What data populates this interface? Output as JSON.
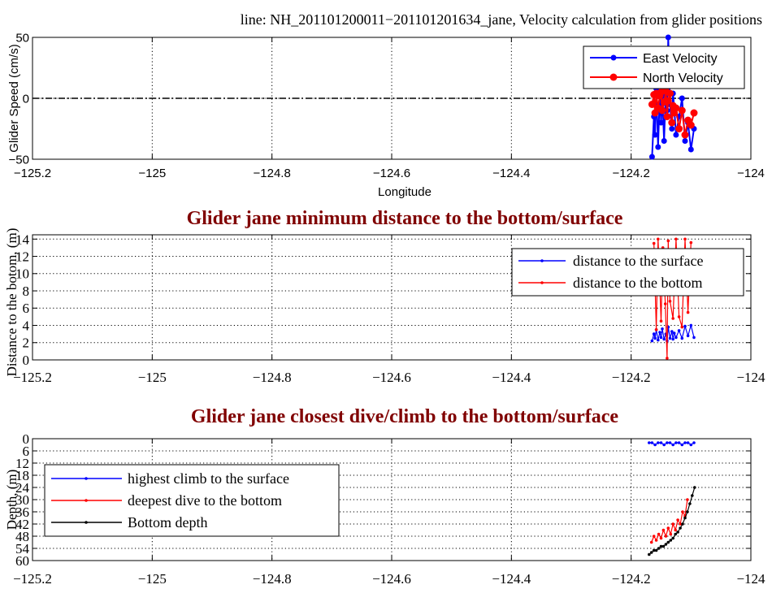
{
  "figure": {
    "top_title": "line: NH_201101200011−201101201634_jane, Velocity calculation from glider positions"
  },
  "chart_data": [
    {
      "type": "line",
      "title": "",
      "xlabel": "Longitude",
      "ylabel": "Glider Speed (cm/s)",
      "xlim": [
        -125.2,
        -124.0
      ],
      "ylim": [
        -50,
        50
      ],
      "xticks": [
        -125.2,
        -125.0,
        -124.8,
        -124.6,
        -124.4,
        -124.2,
        -124.0
      ],
      "xtick_labels": [
        "−125.2",
        "−125",
        "−124.8",
        "−124.6",
        "−124.4",
        "−124.2",
        "−124"
      ],
      "yticks": [
        -50,
        0,
        50
      ],
      "ytick_labels": [
        "−50",
        "0",
        "50"
      ],
      "grid": true,
      "legend_position": "top-right",
      "reference_line": {
        "y": 0,
        "style": "dash-dot"
      },
      "series": [
        {
          "name": "East Velocity",
          "color": "#0000ff",
          "x": [
            -124.165,
            -124.162,
            -124.16,
            -124.158,
            -124.155,
            -124.152,
            -124.15,
            -124.148,
            -124.145,
            -124.142,
            -124.14,
            -124.138,
            -124.135,
            -124.132,
            -124.13,
            -124.128,
            -124.125,
            -124.12,
            -124.115,
            -124.11,
            -124.105,
            -124.1,
            -124.095
          ],
          "values": [
            -48,
            -15,
            -30,
            8,
            -40,
            5,
            -20,
            2,
            -35,
            10,
            -10,
            50,
            -5,
            -25,
            4,
            -8,
            -30,
            -15,
            0,
            -35,
            -20,
            -42,
            -25
          ]
        },
        {
          "name": "North Velocity",
          "color": "#ff0000",
          "x": [
            -124.165,
            -124.162,
            -124.16,
            -124.158,
            -124.155,
            -124.152,
            -124.15,
            -124.148,
            -124.145,
            -124.142,
            -124.14,
            -124.138,
            -124.135,
            -124.132,
            -124.13,
            -124.128,
            -124.125,
            -124.12,
            -124.115,
            -124.11,
            -124.105,
            -124.1,
            -124.095
          ],
          "values": [
            -5,
            3,
            -12,
            4,
            -8,
            2,
            5,
            -10,
            -3,
            6,
            -15,
            -2,
            4,
            -20,
            -6,
            -12,
            -8,
            -25,
            -10,
            -30,
            -18,
            -22,
            -12
          ]
        }
      ]
    },
    {
      "type": "line",
      "title": "Glider jane minimum distance to the bottom/surface",
      "xlabel": "",
      "ylabel": "Distance to the botom, (m)",
      "xlim": [
        -125.2,
        -124.0
      ],
      "ylim": [
        0,
        14.5
      ],
      "xticks": [
        -125.2,
        -125.0,
        -124.8,
        -124.6,
        -124.4,
        -124.2,
        -124.0
      ],
      "xtick_labels": [
        "−125.2",
        "−125",
        "−124.8",
        "−124.6",
        "−124.4",
        "−124.2",
        "−124"
      ],
      "yticks": [
        0,
        2,
        4,
        6,
        8,
        10,
        12,
        14
      ],
      "ytick_labels": [
        "0",
        "2",
        "4",
        "6",
        "8",
        "10",
        "12",
        "14"
      ],
      "grid": true,
      "legend_position": "top-right",
      "series": [
        {
          "name": "distance to the surface",
          "color": "#0000ff",
          "x": [
            -124.165,
            -124.162,
            -124.16,
            -124.158,
            -124.155,
            -124.152,
            -124.15,
            -124.148,
            -124.145,
            -124.142,
            -124.14,
            -124.138,
            -124.135,
            -124.132,
            -124.13,
            -124.128,
            -124.125,
            -124.12,
            -124.115,
            -124.11,
            -124.105,
            -124.1,
            -124.095
          ],
          "values": [
            2.2,
            3.0,
            2.5,
            3.5,
            2.3,
            3.2,
            2.6,
            3.6,
            2.4,
            3.0,
            2.2,
            3.8,
            2.5,
            3.3,
            2.4,
            3.1,
            2.6,
            3.4,
            2.5,
            3.9,
            2.8,
            4.0,
            2.6
          ]
        },
        {
          "name": "distance to the bottom",
          "color": "#ff0000",
          "x": [
            -124.162,
            -124.158,
            -124.155,
            -124.15,
            -124.147,
            -124.143,
            -124.14,
            -124.138,
            -124.135,
            -124.13,
            -124.125,
            -124.12,
            -124.115,
            -124.11,
            -124.105,
            -124.1
          ],
          "values": [
            13.5,
            3.5,
            14.0,
            4.5,
            13.0,
            6.5,
            0.2,
            13.8,
            6.8,
            4.8,
            14.0,
            5.0,
            3.8,
            14.0,
            5.5,
            13.6
          ]
        }
      ]
    },
    {
      "type": "line",
      "title": "Glider jane closest dive/climb to the bottom/surface",
      "xlabel": "",
      "ylabel": "Depth, (m)",
      "xlim": [
        -125.2,
        -124.0
      ],
      "ylim": [
        60,
        0
      ],
      "xticks": [
        -125.2,
        -125.0,
        -124.8,
        -124.6,
        -124.4,
        -124.2,
        -124.0
      ],
      "xtick_labels": [
        "−125.2",
        "−125",
        "−124.8",
        "−124.6",
        "−124.4",
        "−124.2",
        "−124"
      ],
      "yticks": [
        0,
        6,
        12,
        18,
        24,
        30,
        36,
        42,
        48,
        54,
        60
      ],
      "ytick_labels": [
        "0",
        "6",
        "12",
        "18",
        "24",
        "30",
        "36",
        "42",
        "48",
        "54",
        "60"
      ],
      "grid": true,
      "legend_position": "bottom-left",
      "series": [
        {
          "name": "highest climb to the surface",
          "color": "#0000ff",
          "x": [
            -124.17,
            -124.165,
            -124.16,
            -124.155,
            -124.15,
            -124.145,
            -124.14,
            -124.135,
            -124.13,
            -124.125,
            -124.12,
            -124.115,
            -124.11,
            -124.105,
            -124.1,
            -124.095
          ],
          "values": [
            2,
            2,
            3,
            2,
            2,
            3,
            2,
            2,
            3,
            2,
            2,
            3,
            2,
            2,
            3,
            2
          ]
        },
        {
          "name": "deepest dive to the bottom",
          "color": "#ff0000",
          "x": [
            -124.166,
            -124.162,
            -124.158,
            -124.154,
            -124.15,
            -124.146,
            -124.142,
            -124.138,
            -124.134,
            -124.13,
            -124.126,
            -124.122,
            -124.118,
            -124.114,
            -124.11,
            -124.106
          ],
          "values": [
            51,
            48,
            50,
            47,
            49,
            45,
            48,
            44,
            47,
            42,
            45,
            40,
            42,
            36,
            38,
            30
          ]
        },
        {
          "name": "Bottom depth",
          "color": "#000000",
          "x": [
            -124.17,
            -124.166,
            -124.162,
            -124.158,
            -124.154,
            -124.15,
            -124.146,
            -124.142,
            -124.138,
            -124.134,
            -124.13,
            -124.126,
            -124.122,
            -124.118,
            -124.114,
            -124.11,
            -124.106,
            -124.102,
            -124.098,
            -124.094
          ],
          "values": [
            57,
            56,
            55,
            55,
            54,
            53,
            53,
            52,
            51,
            50,
            49,
            47,
            46,
            44,
            42,
            39,
            36,
            32,
            28,
            24
          ]
        }
      ]
    }
  ]
}
